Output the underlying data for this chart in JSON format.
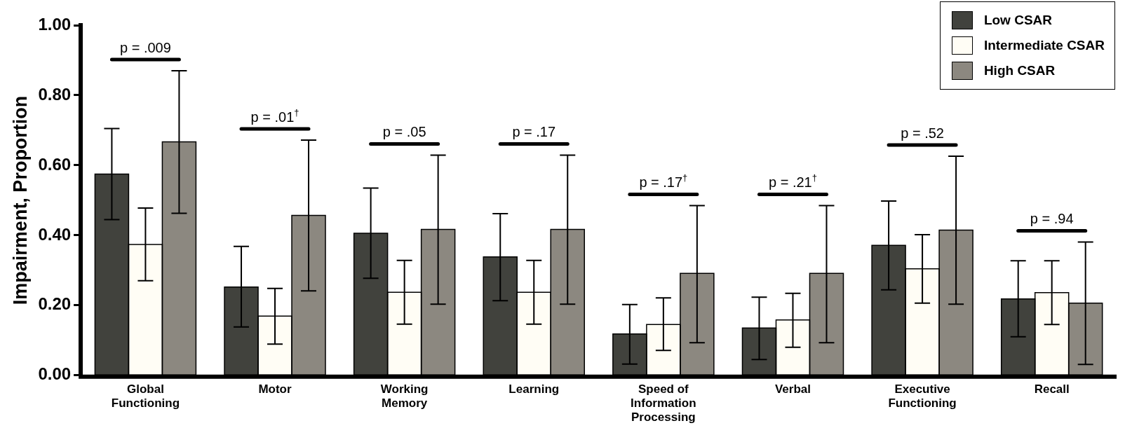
{
  "chart_data": {
    "type": "bar",
    "ylabel": "Impairment, Proportion",
    "categories": [
      "Global Functioning",
      "Motor",
      "Working Memory",
      "Learning",
      "Speed of Information Processing",
      "Verbal",
      "Executive Functioning",
      "Recall"
    ],
    "series": [
      {
        "name": "Low CSAR",
        "color": "#41423d",
        "values": [
          0.575,
          0.252,
          0.406,
          0.338,
          0.118,
          0.135,
          0.371,
          0.218
        ],
        "errors": [
          [
            0.445,
            0.705
          ],
          [
            0.138,
            0.368
          ],
          [
            0.277,
            0.535
          ],
          [
            0.213,
            0.462
          ],
          [
            0.032,
            0.202
          ],
          [
            0.045,
            0.223
          ],
          [
            0.244,
            0.498
          ],
          [
            0.11,
            0.327
          ]
        ]
      },
      {
        "name": "Intermediate CSAR",
        "color": "#fffdf5",
        "values": [
          0.374,
          0.169,
          0.237,
          0.237,
          0.145,
          0.158,
          0.304,
          0.236
        ],
        "errors": [
          [
            0.27,
            0.478
          ],
          [
            0.089,
            0.248
          ],
          [
            0.146,
            0.328
          ],
          [
            0.146,
            0.328
          ],
          [
            0.071,
            0.221
          ],
          [
            0.08,
            0.234
          ],
          [
            0.206,
            0.402
          ],
          [
            0.145,
            0.327
          ]
        ]
      },
      {
        "name": "High CSAR",
        "color": "#8c8880",
        "values": [
          0.667,
          0.457,
          0.417,
          0.417,
          0.291,
          0.291,
          0.415,
          0.206
        ],
        "errors": [
          [
            0.463,
            0.87
          ],
          [
            0.241,
            0.672
          ],
          [
            0.203,
            0.629
          ],
          [
            0.203,
            0.629
          ],
          [
            0.093,
            0.485
          ],
          [
            0.093,
            0.485
          ],
          [
            0.203,
            0.626
          ],
          [
            0.031,
            0.381
          ]
        ]
      }
    ],
    "ylim": [
      0,
      1
    ],
    "yticks": [
      {
        "value": 0,
        "label": "0.00"
      },
      {
        "value": 0.2,
        "label": "0.20"
      },
      {
        "value": 0.4,
        "label": "0.40"
      },
      {
        "value": 0.6,
        "label": "0.60"
      },
      {
        "value": 0.8,
        "label": "0.80"
      },
      {
        "value": 1,
        "label": "1.00"
      }
    ],
    "grid": false,
    "legend": "top right",
    "annotations": [
      "p = .009",
      "p = .01$^{†}$",
      "p = .05",
      "p = .17",
      "p = .17$^{†}$",
      "p = .21$^{†}$",
      "p = .52",
      "p = .94"
    ]
  }
}
